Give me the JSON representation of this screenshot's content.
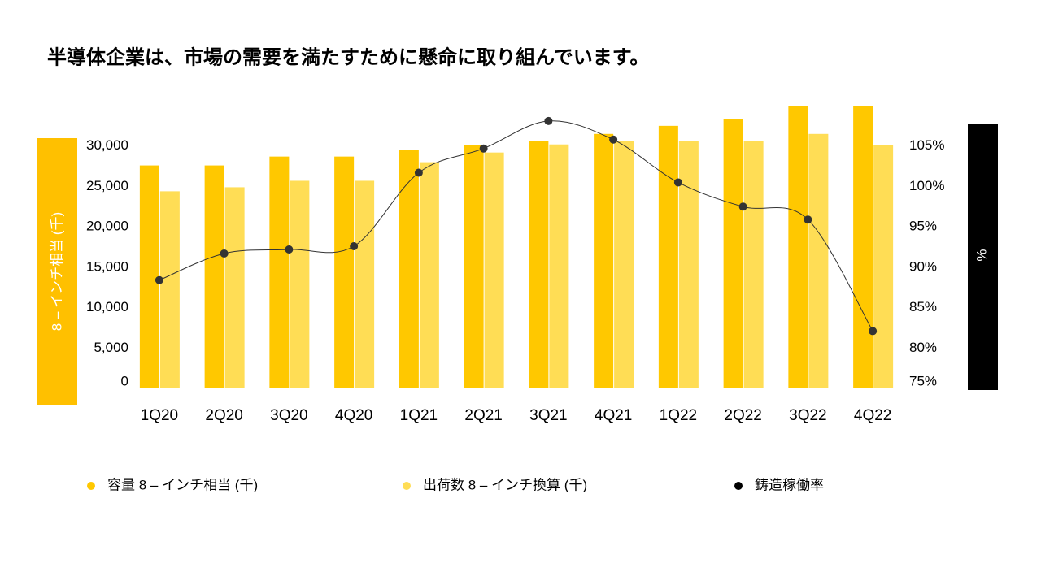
{
  "chart_data": {
    "type": "bar-line",
    "title": "半導体企業は、市場の需要を満たすために懸命に取り組んでいます。",
    "y_label": "8 – インチ相当 (千)",
    "y2_label": "%",
    "categories": [
      "1Q20",
      "2Q20",
      "3Q20",
      "4Q20",
      "1Q21",
      "2Q21",
      "3Q21",
      "4Q21",
      "1Q22",
      "2Q22",
      "3Q22",
      "4Q22"
    ],
    "series": [
      {
        "name": "容量 8 – インチ相当 (千)",
        "type": "bar",
        "color": "#FFC800",
        "values": [
          27600,
          27600,
          28700,
          28700,
          29500,
          30100,
          30600,
          31500,
          32500,
          33300,
          35000,
          35000
        ]
      },
      {
        "name": "出荷数 8 – インチ換算 (千)",
        "type": "bar",
        "color": "#FFDD55",
        "values": [
          24400,
          24900,
          25700,
          25700,
          28000,
          29200,
          30200,
          30600,
          30600,
          30600,
          31500,
          30100
        ]
      },
      {
        "name": "鋳造稼働率",
        "type": "line",
        "axis": "y2",
        "color": "#333333",
        "values": [
          88.4,
          91.7,
          92.2,
          92.6,
          101.7,
          104.7,
          108.1,
          105.8,
          100.5,
          97.5,
          95.9,
          82.1
        ]
      }
    ],
    "ylim": [
      0,
      35000
    ],
    "yticks": [
      0,
      {
        "value": 5000,
        "label": "5,000"
      },
      {
        "value": 10000,
        "label": "10,000"
      },
      {
        "value": 15000,
        "label": "15,000"
      },
      {
        "value": 20000,
        "label": "20,000"
      },
      {
        "value": 25000,
        "label": "25,000"
      },
      {
        "value": 30000,
        "label": "30,000"
      }
    ],
    "y2lim": [
      75,
      110
    ],
    "y2ticks": [
      {
        "value": 75,
        "label": "75%"
      },
      {
        "value": 80,
        "label": "80%"
      },
      {
        "value": 85,
        "label": "85%"
      },
      {
        "value": 90,
        "label": "90%"
      },
      {
        "value": 95,
        "label": "95%"
      },
      {
        "value": 100,
        "label": "100%"
      },
      {
        "value": 105,
        "label": "105%"
      }
    ],
    "grid": false,
    "legend": "bottom"
  }
}
